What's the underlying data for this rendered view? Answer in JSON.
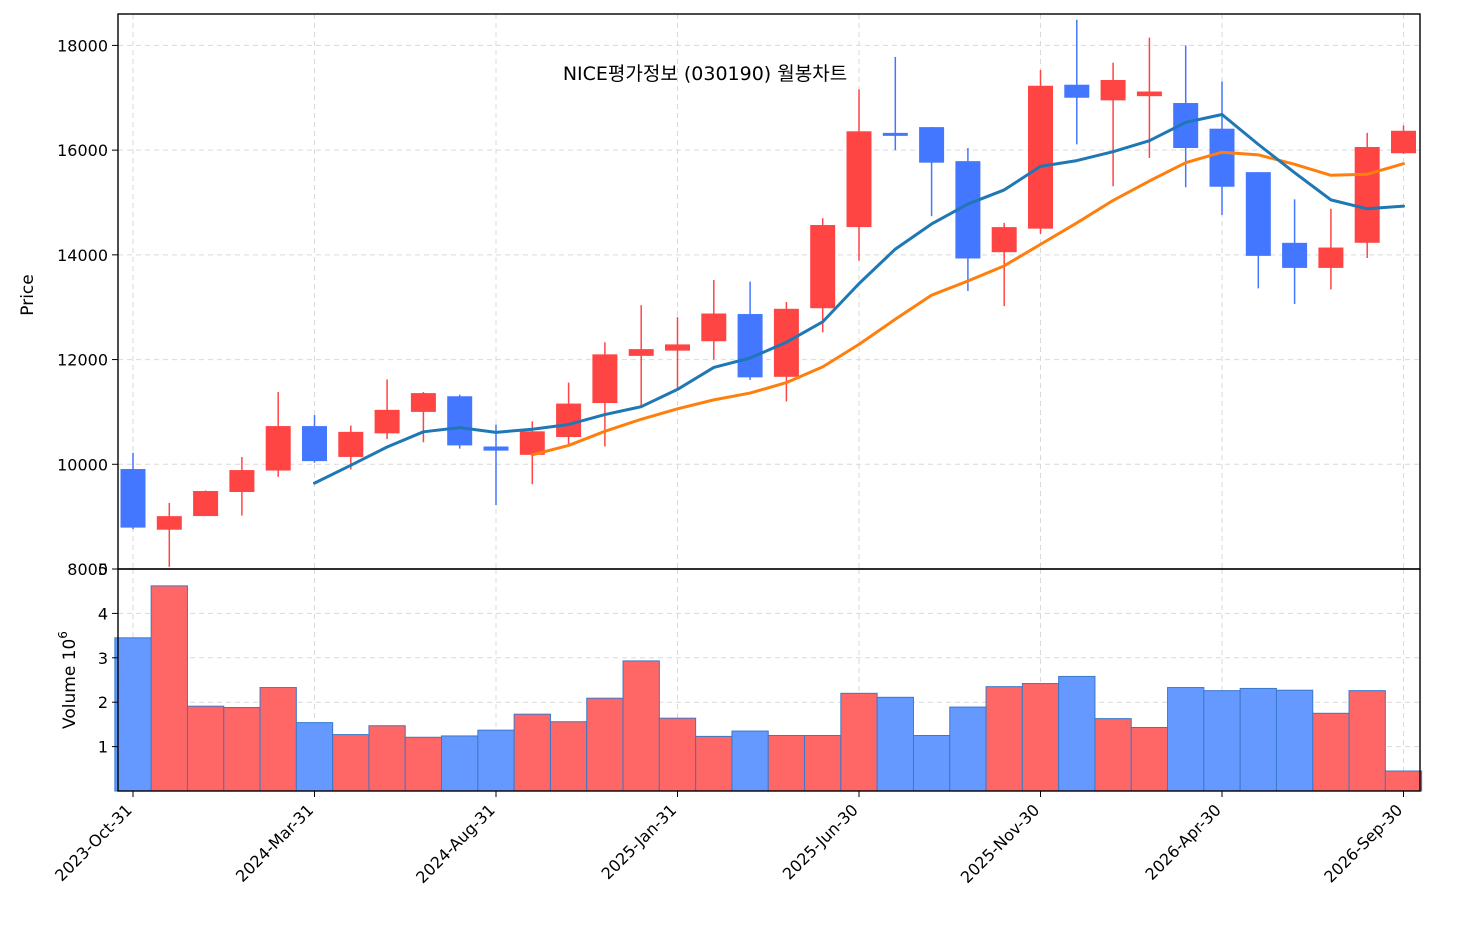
{
  "chart_data": {
    "type": "candlestick",
    "title": "NICE평가정보 (030190) 월봉차트",
    "price_panel": {
      "ylabel": "Price",
      "ylim": [
        8000,
        18600
      ],
      "yticks": [
        8000,
        10000,
        12000,
        14000,
        16000,
        18000
      ]
    },
    "volume_panel": {
      "ylabel": "Volume",
      "exponent_label": "10",
      "exponent": "6",
      "ylim": [
        0,
        5.0
      ],
      "yticks": [
        1,
        2,
        3,
        4,
        5
      ]
    },
    "grid": true,
    "x_tick_labels": [
      {
        "index": 0,
        "label": "2023-Oct-31"
      },
      {
        "index": 5,
        "label": "2024-Mar-31"
      },
      {
        "index": 10,
        "label": "2024-Aug-31"
      },
      {
        "index": 15,
        "label": "2025-Jan-31"
      },
      {
        "index": 20,
        "label": "2025-Jun-30"
      },
      {
        "index": 25,
        "label": "2025-Nov-30"
      },
      {
        "index": 30,
        "label": "2026-Apr-30"
      },
      {
        "index": 35,
        "label": "2026-Sep-30"
      }
    ],
    "colors": {
      "up": "#ff4444",
      "down": "#4477ff",
      "vol_up": "#ff6666",
      "vol_down": "#6699ff",
      "vol_edge": "#3a78c8",
      "ma_short": "#1f77b4",
      "ma_long": "#ff7f0e"
    },
    "candles": [
      {
        "open": 9900,
        "high": 10220,
        "low": 8760,
        "close": 8800
      },
      {
        "open": 8760,
        "high": 9260,
        "low": 8040,
        "close": 9000
      },
      {
        "open": 9020,
        "high": 9500,
        "low": 9020,
        "close": 9480
      },
      {
        "open": 9480,
        "high": 10140,
        "low": 9020,
        "close": 9880
      },
      {
        "open": 9890,
        "high": 11380,
        "low": 9760,
        "close": 10720
      },
      {
        "open": 10720,
        "high": 10940,
        "low": 10030,
        "close": 10070
      },
      {
        "open": 10150,
        "high": 10740,
        "low": 9900,
        "close": 10610
      },
      {
        "open": 10600,
        "high": 11620,
        "low": 10480,
        "close": 11030
      },
      {
        "open": 11010,
        "high": 11380,
        "low": 10420,
        "close": 11350
      },
      {
        "open": 11290,
        "high": 11330,
        "low": 10300,
        "close": 10370
      },
      {
        "open": 10330,
        "high": 10760,
        "low": 9220,
        "close": 10270
      },
      {
        "open": 10190,
        "high": 10820,
        "low": 9620,
        "close": 10620
      },
      {
        "open": 10530,
        "high": 11560,
        "low": 10360,
        "close": 11150
      },
      {
        "open": 11180,
        "high": 12330,
        "low": 10340,
        "close": 12090
      },
      {
        "open": 12080,
        "high": 13040,
        "low": 11120,
        "close": 12190
      },
      {
        "open": 12180,
        "high": 12810,
        "low": 11430,
        "close": 12280
      },
      {
        "open": 12360,
        "high": 13520,
        "low": 12000,
        "close": 12870
      },
      {
        "open": 12860,
        "high": 13490,
        "low": 11610,
        "close": 11670
      },
      {
        "open": 11680,
        "high": 13100,
        "low": 11200,
        "close": 12960
      },
      {
        "open": 12990,
        "high": 14700,
        "low": 12520,
        "close": 14560
      },
      {
        "open": 14540,
        "high": 17160,
        "low": 13890,
        "close": 16350
      },
      {
        "open": 16320,
        "high": 17780,
        "low": 16000,
        "close": 16300
      },
      {
        "open": 16430,
        "high": 16440,
        "low": 14740,
        "close": 15770
      },
      {
        "open": 15780,
        "high": 16040,
        "low": 13310,
        "close": 13940
      },
      {
        "open": 14060,
        "high": 14610,
        "low": 13020,
        "close": 14520
      },
      {
        "open": 14510,
        "high": 17530,
        "low": 14400,
        "close": 17220
      },
      {
        "open": 17240,
        "high": 18490,
        "low": 16110,
        "close": 17010
      },
      {
        "open": 16960,
        "high": 17670,
        "low": 15310,
        "close": 17330
      },
      {
        "open": 17040,
        "high": 18150,
        "low": 15850,
        "close": 17110
      },
      {
        "open": 16890,
        "high": 18000,
        "low": 15290,
        "close": 16050
      },
      {
        "open": 16400,
        "high": 17310,
        "low": 14760,
        "close": 15310
      },
      {
        "open": 15570,
        "high": 15580,
        "low": 13360,
        "close": 13990
      },
      {
        "open": 14220,
        "high": 15060,
        "low": 13060,
        "close": 13760
      },
      {
        "open": 13760,
        "high": 14880,
        "low": 13340,
        "close": 14130
      },
      {
        "open": 14240,
        "high": 16330,
        "low": 13940,
        "close": 16050
      },
      {
        "open": 15950,
        "high": 16470,
        "low": 15930,
        "close": 16360
      }
    ],
    "volume": [
      3.45,
      4.62,
      1.91,
      1.88,
      2.33,
      1.54,
      1.27,
      1.47,
      1.21,
      1.24,
      1.37,
      1.73,
      1.56,
      2.09,
      2.93,
      1.64,
      1.23,
      1.35,
      1.25,
      1.25,
      2.2,
      2.11,
      1.25,
      1.89,
      2.35,
      2.42,
      2.58,
      1.63,
      1.43,
      2.33,
      2.26,
      2.31,
      2.27,
      1.75,
      2.26,
      0.45
    ],
    "ma_short": {
      "start_index": 5,
      "values": [
        9640,
        9980,
        10330,
        10620,
        10700,
        10610,
        10670,
        10760,
        10950,
        11100,
        11430,
        11850,
        12030,
        12330,
        12720,
        13450,
        14110,
        14590,
        14970,
        15240,
        15690,
        15800,
        15970,
        16180,
        16530,
        16680,
        16110,
        15570,
        15050,
        14880,
        14930
      ]
    },
    "ma_long": {
      "start_index": 11,
      "values": [
        10180,
        10360,
        10630,
        10860,
        11060,
        11230,
        11360,
        11560,
        11860,
        12290,
        12770,
        13230,
        13500,
        13790,
        14200,
        14610,
        15040,
        15410,
        15760,
        15960,
        15910,
        15730,
        15520,
        15540,
        15740
      ]
    }
  }
}
